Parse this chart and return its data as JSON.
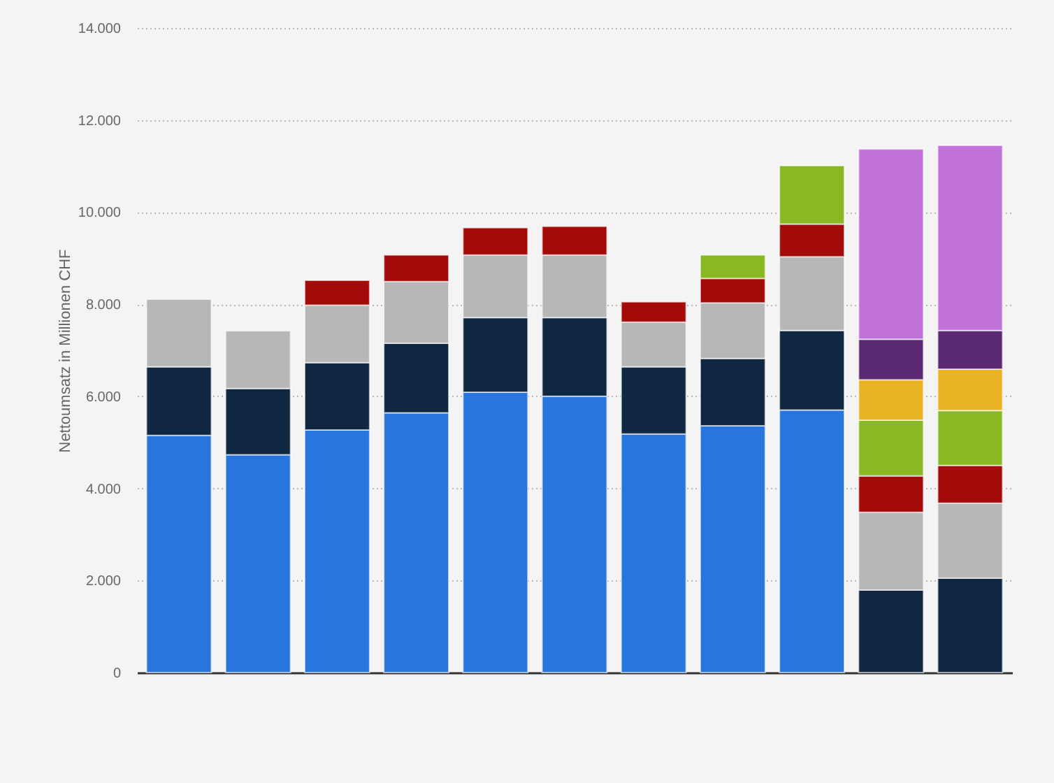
{
  "chart_data": {
    "type": "bar",
    "ylabel": "Nettoumsatz in Millionen CHF",
    "categories": [
      null,
      null,
      null,
      null,
      null,
      null,
      null,
      null,
      null,
      null,
      null
    ],
    "stacked": true,
    "grid": "y",
    "ylim": [
      0,
      14000
    ],
    "yticks": [
      0,
      {
        "value": 2000,
        "label": "2.000"
      },
      {
        "value": 4000,
        "label": "4.000"
      },
      {
        "value": 6000,
        "label": "6.000"
      },
      {
        "value": 8000,
        "label": "8.000"
      },
      {
        "value": 10000,
        "label": "10.000"
      },
      {
        "value": 12000,
        "label": "12.000"
      },
      {
        "value": 14000,
        "label": "14.000"
      }
    ],
    "series": [
      {
        "color": "#2876dd",
        "values": [
          5150,
          4730,
          5270,
          5640,
          6090,
          6000,
          5180,
          5360,
          5700,
          null,
          null
        ]
      },
      {
        "color": "#0f2740",
        "values": [
          1490,
          1440,
          1460,
          1510,
          1620,
          1710,
          1460,
          1460,
          1730,
          1790,
          2050
        ]
      },
      {
        "color": "#b7b7b7",
        "values": [
          1470,
          1250,
          1250,
          1340,
          1360,
          1360,
          970,
          1210,
          1600,
          1690,
          1630
        ]
      },
      {
        "color": "#a30b0b",
        "values": [
          null,
          null,
          540,
          580,
          590,
          620,
          440,
          530,
          710,
          790,
          820
        ]
      },
      {
        "color": "#88b923",
        "values": [
          null,
          null,
          null,
          null,
          null,
          null,
          null,
          510,
          1270,
          1210,
          1190
        ]
      },
      {
        "color": "#e9b323",
        "values": [
          null,
          null,
          null,
          null,
          null,
          null,
          null,
          null,
          null,
          880,
          900
        ]
      },
      {
        "color": "#5b2873",
        "values": [
          null,
          null,
          null,
          null,
          null,
          null,
          null,
          null,
          null,
          880,
          840
        ]
      },
      {
        "color": "#c072d8",
        "values": [
          null,
          null,
          null,
          null,
          null,
          null,
          null,
          null,
          null,
          4130,
          4020
        ]
      }
    ]
  }
}
